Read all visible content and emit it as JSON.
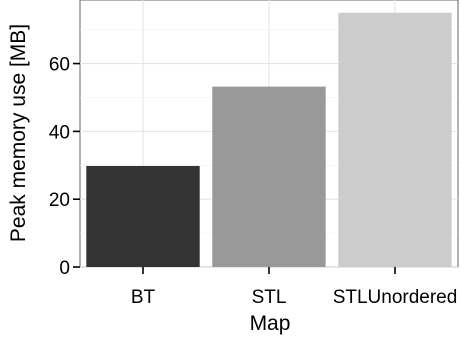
{
  "chart_data": {
    "type": "bar",
    "categories": [
      "BT",
      "STL",
      "STLUnordered"
    ],
    "values": [
      29.8,
      53.2,
      75.0
    ],
    "colors": [
      "#333333",
      "#999999",
      "#cccccc"
    ],
    "xlabel": "Map",
    "ylabel": "Peak memory use [MB]",
    "ylim": [
      0,
      78.75
    ],
    "yticks": [
      0,
      20,
      40,
      60
    ],
    "grid": true,
    "legend": "none"
  }
}
